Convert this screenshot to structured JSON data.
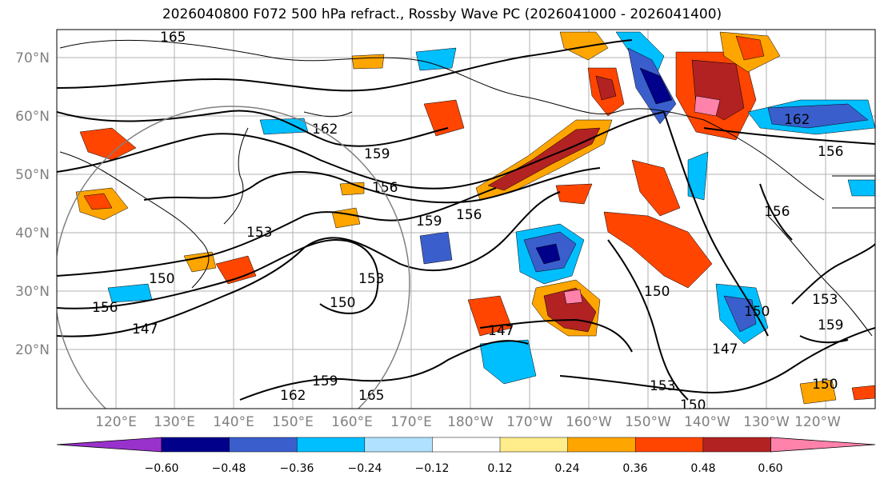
{
  "title": "2026040800 F072 500 hPa refract., Rossby Wave PC (2026041000 - 2026041400)",
  "lat_labels": [
    "70°N",
    "60°N",
    "50°N",
    "40°N",
    "30°N",
    "20°N"
  ],
  "lon_labels": [
    "120°E",
    "130°E",
    "140°E",
    "150°E",
    "160°E",
    "170°E",
    "180°W",
    "170°W",
    "160°W",
    "150°W",
    "140°W",
    "130°W",
    "120°W"
  ],
  "contour_labels": [
    "165",
    "162",
    "159",
    "156",
    "153",
    "150",
    "147",
    "159",
    "156",
    "153",
    "150",
    "147",
    "162",
    "156",
    "156",
    "150",
    "147",
    "153",
    "150",
    "162",
    "159",
    "165",
    "156",
    "150",
    "153",
    "159",
    "150"
  ],
  "colorbar": {
    "colors": [
      "#9932cc",
      "#00008b",
      "#3a5fcd",
      "#00bfff",
      "#b0e2ff",
      "#ffffff",
      "#ffec8b",
      "#ffa500",
      "#ff4500",
      "#b22222",
      "#ff82ab"
    ],
    "tick_labels": [
      "−0.60",
      "−0.48",
      "−0.36",
      "−0.24",
      "−0.12",
      "0.12",
      "0.24",
      "0.36",
      "0.48",
      "0.60"
    ]
  }
}
